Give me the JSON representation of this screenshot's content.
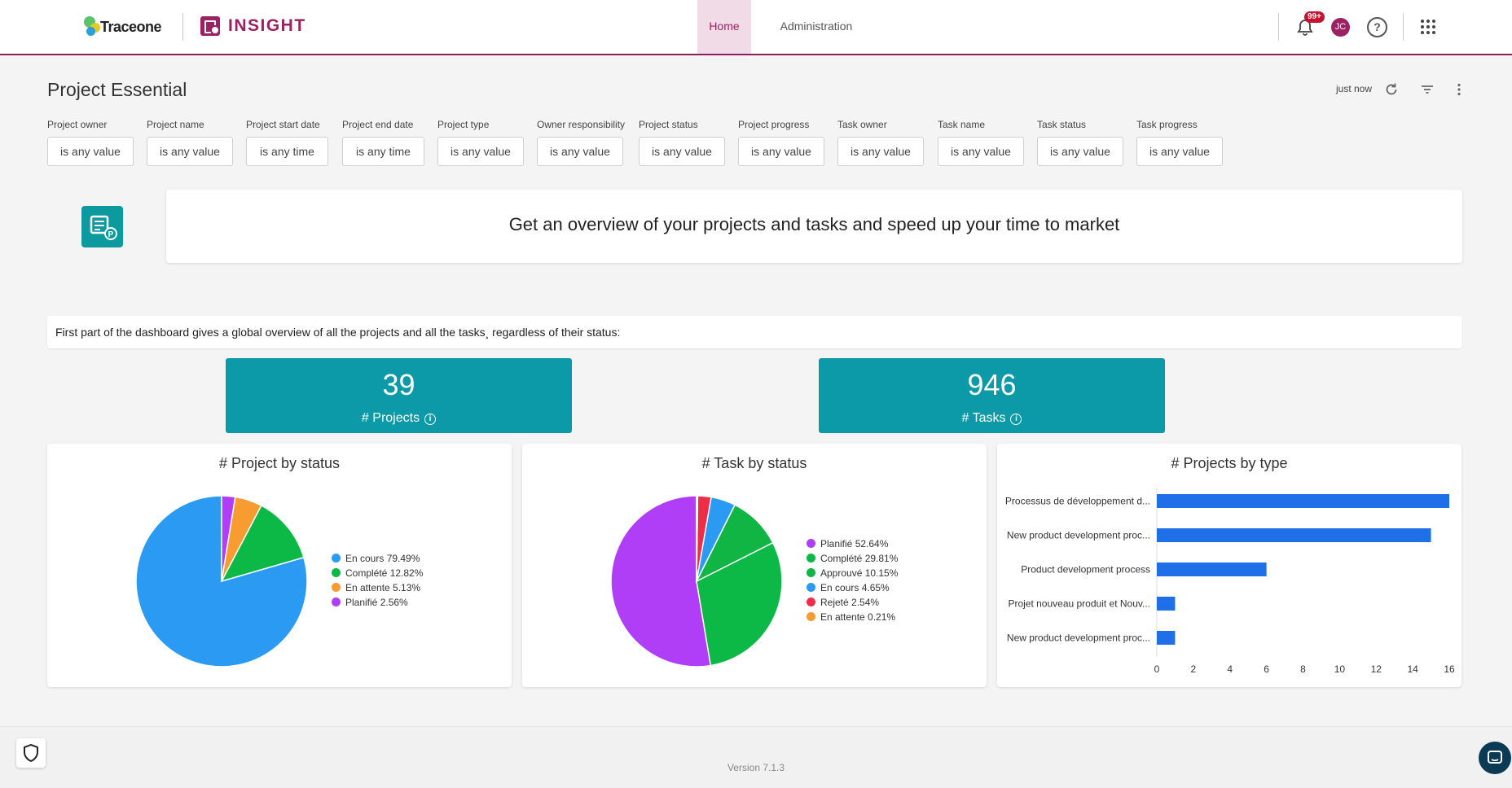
{
  "header": {
    "brand": "Traceone",
    "product": "INSIGHT",
    "nav": [
      {
        "label": "Home",
        "active": true
      },
      {
        "label": "Administration",
        "active": false
      }
    ],
    "notification_badge": "99+",
    "avatar_initials": "JC",
    "help_label": "?",
    "icons": [
      "bell-icon",
      "help-icon",
      "apps-grid-icon"
    ]
  },
  "page": {
    "title": "Project Essential",
    "updated": "just now",
    "icons": [
      "refresh-icon",
      "filter-icon",
      "more-vertical-icon"
    ]
  },
  "filters": [
    {
      "label": "Project owner",
      "value": "is any value"
    },
    {
      "label": "Project name",
      "value": "is any value"
    },
    {
      "label": "Project start date",
      "value": "is any time"
    },
    {
      "label": "Project end date",
      "value": "is any time"
    },
    {
      "label": "Project type",
      "value": "is any value"
    },
    {
      "label": "Owner responsibility",
      "value": "is any value"
    },
    {
      "label": "Project status",
      "value": "is any value"
    },
    {
      "label": "Project progress",
      "value": "is any value"
    },
    {
      "label": "Task owner",
      "value": "is any value"
    },
    {
      "label": "Task name",
      "value": "is any value"
    },
    {
      "label": "Task status",
      "value": "is any value"
    },
    {
      "label": "Task progress",
      "value": "is any value"
    }
  ],
  "intro": {
    "text": "Get an overview of your projects and tasks and speed up your time to market"
  },
  "description": {
    "text": "First part of the dashboard gives a global overview of all the projects and all the tasks¸ regardless of their status:"
  },
  "kpis": [
    {
      "value": "39",
      "label": "# Projects"
    },
    {
      "value": "946",
      "label": "# Tasks"
    }
  ],
  "info_icon_glyph": "i",
  "chart_data": [
    {
      "type": "pie",
      "title": "# Project by status",
      "slices": [
        {
          "label": "En cours",
          "value": 79.49,
          "display": "En cours 79.49%",
          "color": "#2b9af3"
        },
        {
          "label": "Complété",
          "value": 12.82,
          "display": "Complété 12.82%",
          "color": "#0cb846"
        },
        {
          "label": "En attente",
          "value": 5.13,
          "display": "En attente 5.13%",
          "color": "#f89c32"
        },
        {
          "label": "Planifié",
          "value": 2.56,
          "display": "Planifié 2.56%",
          "color": "#b03ef7"
        }
      ]
    },
    {
      "type": "pie",
      "title": "# Task by status",
      "slices": [
        {
          "label": "Planifié",
          "value": 52.64,
          "display": "Planifié 52.64%",
          "color": "#b03ef7"
        },
        {
          "label": "Complété",
          "value": 29.81,
          "display": "Complété 29.81%",
          "color": "#0cb846"
        },
        {
          "label": "Approuvé",
          "value": 10.15,
          "display": "Approuvé 10.15%",
          "color": "#11b544"
        },
        {
          "label": "En cours",
          "value": 4.65,
          "display": "En cours 4.65%",
          "color": "#2b9af3"
        },
        {
          "label": "Rejeté",
          "value": 2.54,
          "display": "Rejeté 2.54%",
          "color": "#ef2d46"
        },
        {
          "label": "En attente",
          "value": 0.21,
          "display": "En attente 0.21%",
          "color": "#f89c32"
        }
      ]
    },
    {
      "type": "bar",
      "orientation": "horizontal",
      "title": "# Projects by type",
      "categories": [
        "Processus de développement d...",
        "New product development proc...",
        "Product development process",
        "Projet nouveau produit et Nouv...",
        "New product development proc..."
      ],
      "values": [
        16,
        15,
        6,
        1,
        1
      ],
      "xlim": [
        0,
        16
      ],
      "xticks": [
        0,
        2,
        4,
        6,
        8,
        10,
        12,
        14,
        16
      ],
      "color": "#1f70e8"
    }
  ],
  "footer": {
    "version": "Version 7.1.3",
    "icons": [
      "shield-icon",
      "chat-icon"
    ]
  }
}
